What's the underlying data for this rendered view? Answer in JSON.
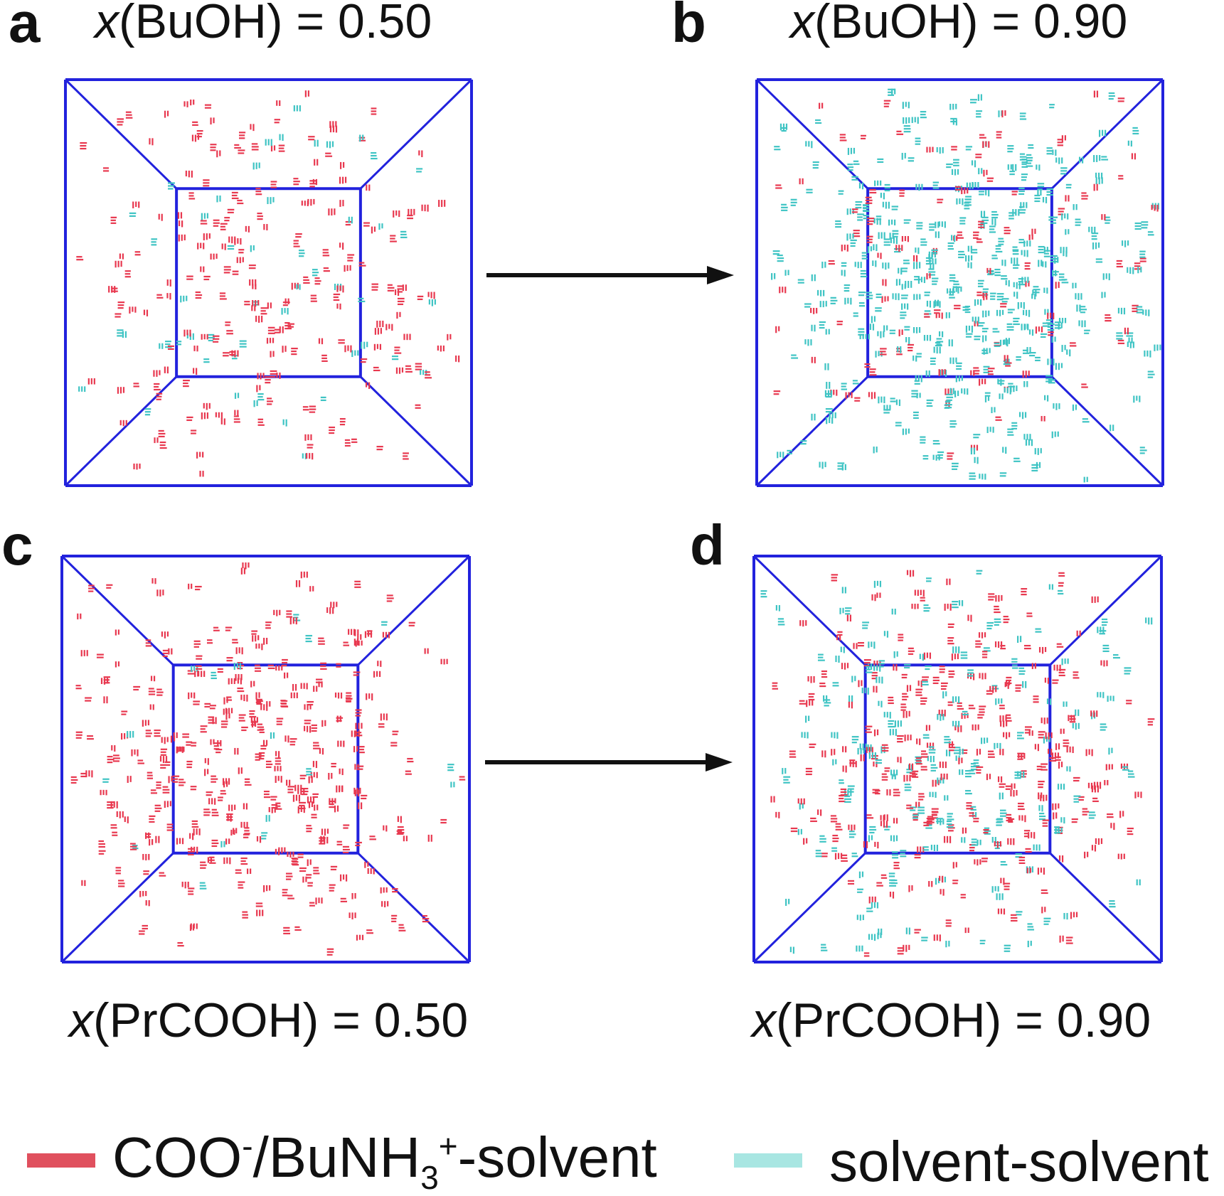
{
  "colors": {
    "box_line": "#2222dd",
    "solute_solvent": "#e8384f",
    "solvent_solvent": "#3fc4c4",
    "legend_solute_solvent": "#e0505e",
    "legend_solvent_solvent": "#a8e6e2",
    "arrow": "#111111"
  },
  "panels": {
    "a": {
      "letter": "a",
      "var": "x",
      "label": "(BuOH) = 0.50",
      "red_fraction": 0.82,
      "count": 300
    },
    "b": {
      "letter": "b",
      "var": "x",
      "label": "(BuOH) = 0.90",
      "red_fraction": 0.2,
      "count": 600
    },
    "c": {
      "letter": "c",
      "var": "x",
      "label": "(PrCOOH) = 0.50",
      "red_fraction": 0.95,
      "count": 420
    },
    "d": {
      "letter": "d",
      "var": "x",
      "label": "(PrCOOH) = 0.90",
      "red_fraction": 0.55,
      "count": 540
    }
  },
  "legend": {
    "item1": {
      "pre": "COO",
      "sup1": "-",
      "mid": "/BuNH",
      "sub": "3",
      "sup2": "+",
      "post": "-solvent"
    },
    "item2": {
      "label": "solvent-solvent"
    }
  }
}
